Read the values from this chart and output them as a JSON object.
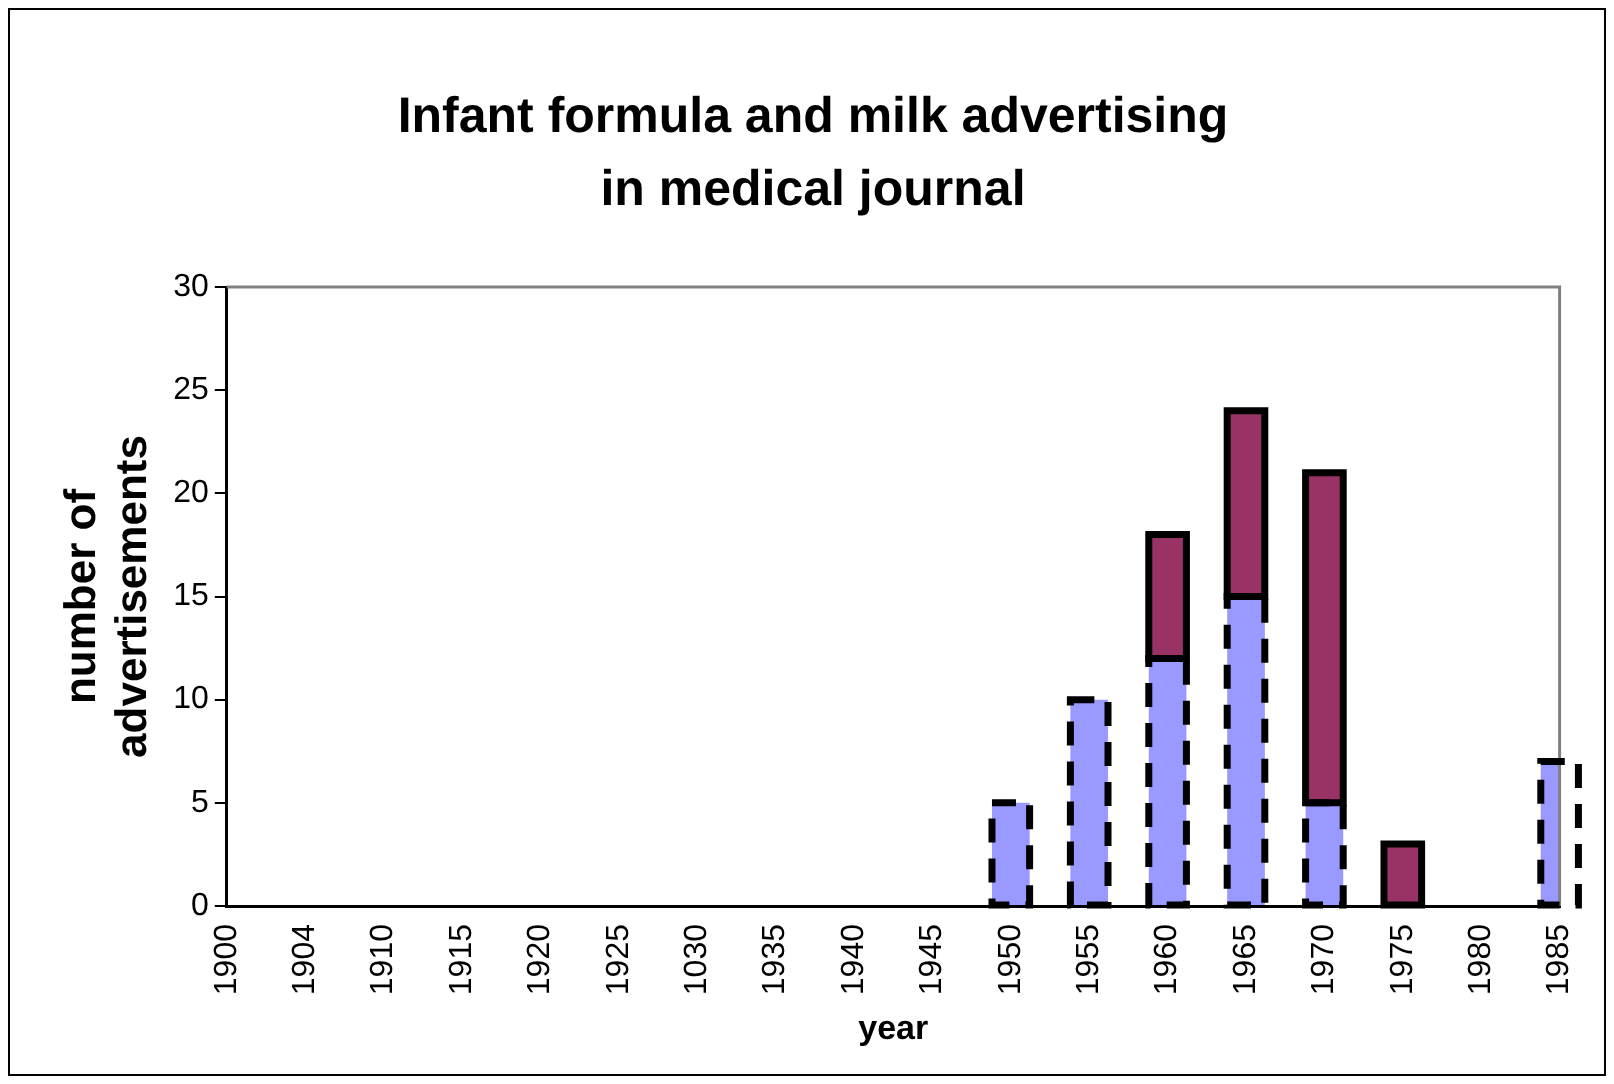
{
  "chart_data": {
    "type": "bar",
    "title": "Infant formula and milk advertising in medical journal",
    "xlabel": "year",
    "ylabel": "number of advertisements",
    "categories": [
      "1900",
      "1904",
      "1910",
      "1915",
      "1920",
      "1925",
      "1030",
      "1935",
      "1940",
      "1945",
      "1950",
      "1955",
      "1960",
      "1965",
      "1970",
      "1975",
      "1980",
      "1985"
    ],
    "series": [
      {
        "color": "#9999ff",
        "line_style": "dashed",
        "values": [
          0,
          0,
          0,
          0,
          0,
          0,
          0,
          0,
          0,
          0,
          5,
          10,
          12,
          15,
          5,
          0,
          0,
          7
        ]
      },
      {
        "color": "#993366",
        "line_style": "solid",
        "values": [
          0,
          0,
          0,
          0,
          0,
          0,
          0,
          0,
          0,
          0,
          0,
          0,
          6,
          9,
          16,
          3,
          0,
          0
        ]
      }
    ],
    "stacked": true,
    "ylim": [
      0,
      30
    ],
    "yticks": [
      0,
      5,
      10,
      15,
      20,
      25,
      30
    ],
    "grid": false,
    "legend": false
  }
}
